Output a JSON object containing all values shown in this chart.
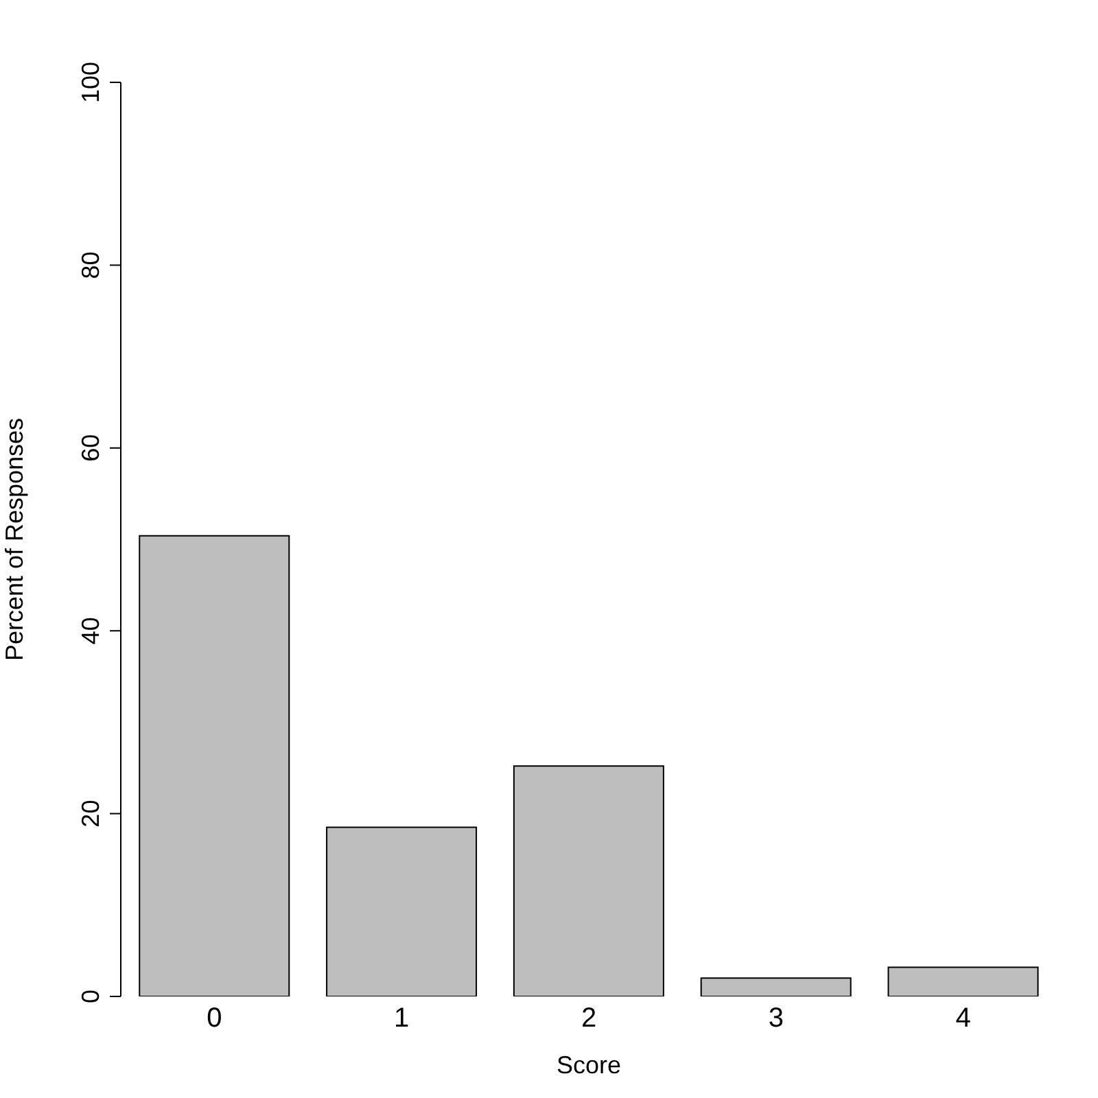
{
  "chart_data": {
    "type": "bar",
    "xlabel": "Score",
    "ylabel": "Percent of Responses",
    "categories": [
      "0",
      "1",
      "2",
      "3",
      "4"
    ],
    "values": [
      50.4,
      18.5,
      25.2,
      2.0,
      3.2
    ],
    "color": "#bebebe",
    "ylim": [
      0,
      100
    ],
    "yticks": [
      0,
      20,
      40,
      60,
      80,
      100
    ]
  }
}
